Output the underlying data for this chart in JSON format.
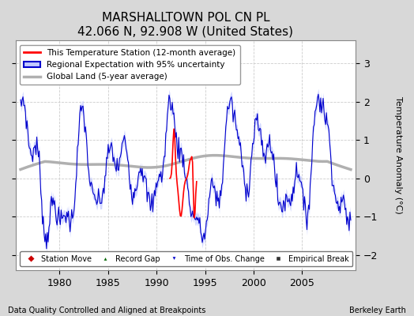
{
  "title": "MARSHALLTOWN POL CN PL",
  "subtitle": "42.066 N, 92.908 W (United States)",
  "ylabel": "Temperature Anomaly (°C)",
  "xlabel_note": "Data Quality Controlled and Aligned at Breakpoints",
  "credit": "Berkeley Earth",
  "xlim": [
    1975.5,
    2010.5
  ],
  "ylim": [
    -2.4,
    3.6
  ],
  "yticks": [
    -2,
    -1,
    0,
    1,
    2,
    3
  ],
  "xticks": [
    1980,
    1985,
    1990,
    1995,
    2000,
    2005
  ],
  "bg_color": "#d8d8d8",
  "plot_bg_color": "#ffffff",
  "legend_station_label": "This Temperature Station (12-month average)",
  "legend_regional_label": "Regional Expectation with 95% uncertainty",
  "legend_global_label": "Global Land (5-year average)",
  "station_color": "#ff0000",
  "regional_color": "#0000cc",
  "regional_fill_color": "#c0c8ff",
  "global_color": "#b0b0b0",
  "marker_station_move_color": "#cc0000",
  "marker_record_gap_color": "#006600",
  "marker_obs_change_color": "#0000cc",
  "marker_empirical_color": "#333333"
}
